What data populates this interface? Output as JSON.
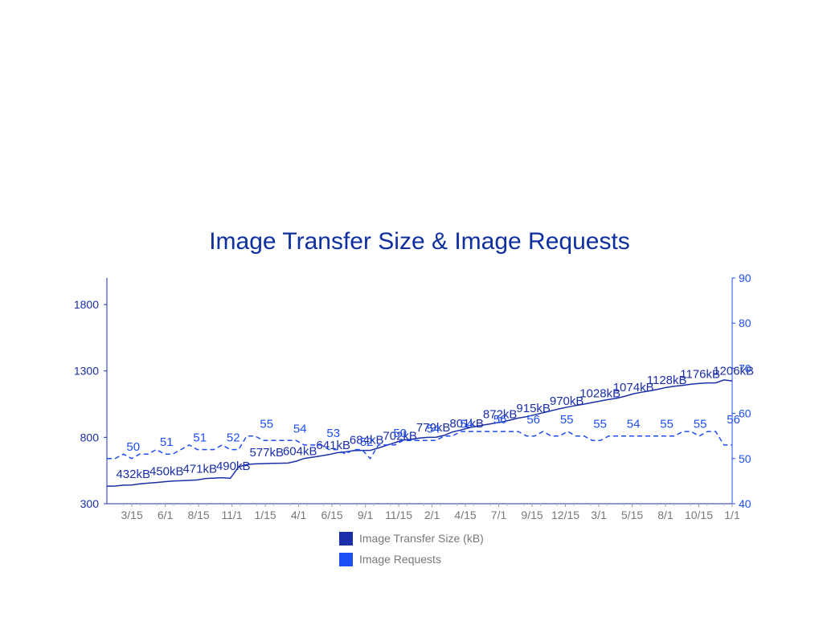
{
  "chart_data": {
    "type": "line",
    "title": "Image Transfer Size & Image Requests",
    "colors": {
      "title": "#0e2fa0",
      "size": "#1a2fa8",
      "requests": "#1e4ff5",
      "axis_text": "#777777"
    },
    "x_ticks": [
      "3/15",
      "6/1",
      "8/15",
      "11/1",
      "1/15",
      "4/1",
      "6/15",
      "9/1",
      "11/15",
      "2/1",
      "4/15",
      "7/1",
      "9/15",
      "12/15",
      "3/1",
      "5/15",
      "8/1",
      "10/15",
      "1/1"
    ],
    "y_left": {
      "min": 300,
      "max": 2000,
      "ticks": [
        300,
        800,
        1300,
        1800
      ]
    },
    "y_right": {
      "min": 40,
      "max": 90,
      "ticks": [
        40,
        50,
        60,
        70,
        80,
        90
      ]
    },
    "legend_placement": "bottom-center",
    "series": [
      {
        "name": "Image Transfer Size (kB)",
        "axis": "left",
        "style": "solid",
        "values": [
          432,
          433,
          440,
          441,
          450,
          455,
          460,
          466,
          471,
          473,
          476,
          479,
          490,
          493,
          496,
          491,
          577,
          595,
          600,
          602,
          604,
          605,
          606,
          620,
          641,
          650,
          660,
          670,
          684,
          690,
          700,
          702,
          702,
          720,
          740,
          760,
          779,
          785,
          795,
          800,
          801,
          815,
          840,
          855,
          872,
          885,
          895,
          905,
          915,
          930,
          945,
          955,
          970,
          985,
          1000,
          1015,
          1028,
          1040,
          1050,
          1062,
          1074,
          1085,
          1095,
          1110,
          1128,
          1140,
          1150,
          1162,
          1176,
          1185,
          1192,
          1200,
          1206,
          1210,
          1210,
          1232,
          1225
        ],
        "labels": [
          "432kB",
          "450kB",
          "471kB",
          "490kB",
          "577kB",
          "604kB",
          "641kB",
          "684kB",
          "702kB",
          "779kB",
          "801kB",
          "872kB",
          "915kB",
          "970kB",
          "1028kB",
          "1074kB",
          "1128kB",
          "1176kB",
          "1206kB"
        ]
      },
      {
        "name": "Image Requests",
        "axis": "right",
        "style": "dashed",
        "values": [
          50,
          50,
          51,
          50,
          51,
          51,
          52,
          51,
          51,
          52,
          53,
          52,
          52,
          52,
          53,
          52,
          52,
          55,
          55,
          54,
          54,
          54,
          54,
          54,
          53,
          53,
          53,
          52,
          52,
          51,
          52,
          52,
          50,
          53,
          53,
          53,
          54,
          54,
          54,
          54,
          54,
          55,
          55,
          56,
          56,
          56,
          56,
          56,
          56,
          56,
          56,
          55,
          55,
          56,
          55,
          55,
          56,
          55,
          55,
          54,
          54,
          55,
          55,
          55,
          55,
          55,
          55,
          55,
          55,
          55,
          56,
          56,
          55,
          56,
          56,
          53,
          53
        ],
        "labels": [
          "50",
          "51",
          "51",
          "52",
          "55",
          "54",
          "53",
          "52",
          "50",
          "54",
          "54",
          "56",
          "56",
          "55",
          "55",
          "54",
          "55",
          "55",
          "56"
        ]
      }
    ]
  }
}
